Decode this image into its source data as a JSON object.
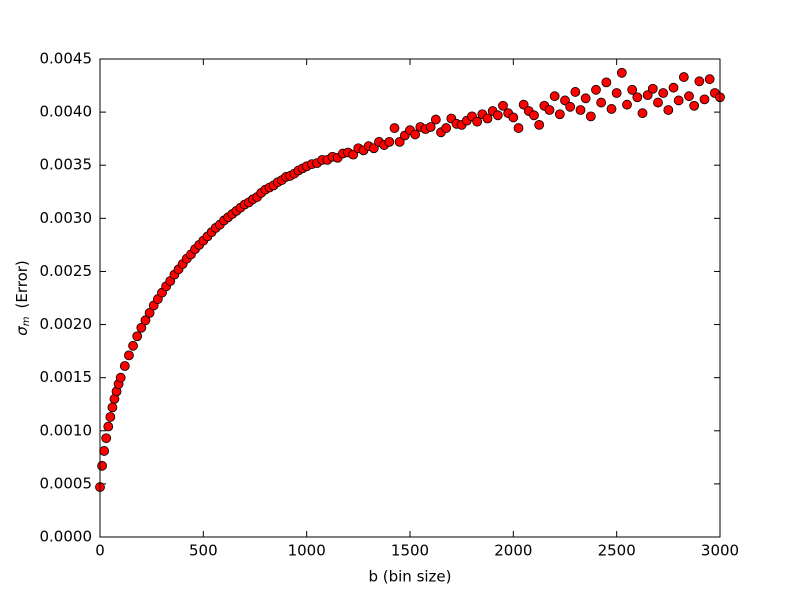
{
  "chart_data": {
    "type": "scatter",
    "xlabel": "b  (bin size)",
    "ylabel": {
      "symbol": "σ",
      "subscript": "m",
      "text": "(Error)"
    },
    "color": "#ff0000",
    "edgecolor": "#000000",
    "xlim": [
      0,
      3000
    ],
    "xticks": [
      0,
      500,
      1000,
      1500,
      2000,
      2500,
      3000
    ],
    "ylim": [
      0,
      0.0045
    ],
    "yticks": [
      {
        "value": 0,
        "label": "0.0000"
      },
      {
        "value": 0.0005,
        "label": "0.0005"
      },
      {
        "value": 0.001,
        "label": "0.0010"
      },
      {
        "value": 0.0015,
        "label": "0.0015"
      },
      {
        "value": 0.002,
        "label": "0.0020"
      },
      {
        "value": 0.0025,
        "label": "0.0025"
      },
      {
        "value": 0.003,
        "label": "0.0030"
      },
      {
        "value": 0.0035,
        "label": "0.0035"
      },
      {
        "value": 0.004,
        "label": "0.0040"
      },
      {
        "value": 0.0045,
        "label": "0.0045"
      }
    ],
    "x": [
      0,
      10,
      20,
      30,
      40,
      50,
      60,
      70,
      80,
      90,
      100,
      120,
      140,
      160,
      180,
      200,
      220,
      240,
      260,
      280,
      300,
      320,
      340,
      360,
      380,
      400,
      420,
      440,
      460,
      480,
      500,
      520,
      540,
      560,
      580,
      600,
      620,
      640,
      660,
      680,
      700,
      720,
      740,
      760,
      780,
      800,
      820,
      840,
      860,
      880,
      900,
      920,
      940,
      960,
      980,
      1000,
      1025,
      1050,
      1075,
      1100,
      1125,
      1150,
      1175,
      1200,
      1225,
      1250,
      1275,
      1300,
      1325,
      1350,
      1375,
      1400,
      1425,
      1450,
      1475,
      1500,
      1525,
      1550,
      1575,
      1600,
      1625,
      1650,
      1675,
      1700,
      1725,
      1750,
      1775,
      1800,
      1825,
      1850,
      1875,
      1900,
      1925,
      1950,
      1975,
      2000,
      2025,
      2050,
      2075,
      2100,
      2125,
      2150,
      2175,
      2200,
      2225,
      2250,
      2275,
      2300,
      2325,
      2350,
      2375,
      2400,
      2425,
      2450,
      2475,
      2500,
      2525,
      2550,
      2575,
      2600,
      2625,
      2650,
      2675,
      2700,
      2725,
      2750,
      2775,
      2800,
      2825,
      2850,
      2875,
      2900,
      2925,
      2950,
      2975,
      3000
    ],
    "values": [
      0.00047,
      0.00067,
      0.00081,
      0.00093,
      0.00104,
      0.00113,
      0.00122,
      0.0013,
      0.00137,
      0.00144,
      0.0015,
      0.00161,
      0.00171,
      0.0018,
      0.00189,
      0.00197,
      0.00204,
      0.00211,
      0.00218,
      0.00224,
      0.0023,
      0.00236,
      0.00241,
      0.00247,
      0.00252,
      0.00257,
      0.00262,
      0.00266,
      0.00271,
      0.00275,
      0.00279,
      0.00283,
      0.00287,
      0.00291,
      0.00294,
      0.00298,
      0.00301,
      0.00304,
      0.00307,
      0.0031,
      0.00313,
      0.00315,
      0.00318,
      0.0032,
      0.00324,
      0.00327,
      0.00329,
      0.00331,
      0.00334,
      0.00336,
      0.00339,
      0.0034,
      0.00342,
      0.00345,
      0.00347,
      0.00349,
      0.00351,
      0.00352,
      0.00355,
      0.00355,
      0.00358,
      0.00357,
      0.00361,
      0.00362,
      0.0036,
      0.00366,
      0.00364,
      0.00368,
      0.00366,
      0.00372,
      0.00369,
      0.00372,
      0.00385,
      0.00372,
      0.00378,
      0.00383,
      0.00379,
      0.00386,
      0.00384,
      0.00386,
      0.00393,
      0.00381,
      0.00385,
      0.00394,
      0.00389,
      0.00388,
      0.00392,
      0.00396,
      0.00391,
      0.00398,
      0.00394,
      0.00401,
      0.00397,
      0.00406,
      0.00399,
      0.00395,
      0.00385,
      0.00407,
      0.00401,
      0.00397,
      0.00388,
      0.00406,
      0.00402,
      0.00415,
      0.00398,
      0.00411,
      0.00405,
      0.00419,
      0.00402,
      0.00413,
      0.00396,
      0.00421,
      0.00409,
      0.00428,
      0.00403,
      0.00418,
      0.00437,
      0.00407,
      0.00421,
      0.00414,
      0.00399,
      0.00416,
      0.00422,
      0.00409,
      0.00418,
      0.00402,
      0.00423,
      0.00411,
      0.00433,
      0.00415,
      0.00406,
      0.00429,
      0.00412,
      0.00431,
      0.00418,
      0.00414
    ]
  }
}
